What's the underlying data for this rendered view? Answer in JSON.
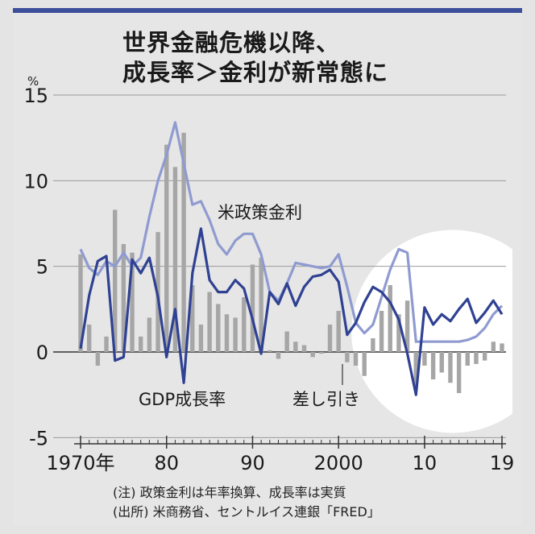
{
  "title_line1": "世界金融危機以降、",
  "title_line2": "成長率＞金利が新常態に",
  "unit": "%",
  "note1": "(注) 政策金利は年率換算、成長率は実質",
  "note2": "(出所) 米商務省、セントルイス連銀「FRED」",
  "chart_data": {
    "type": "line",
    "x": [
      1970,
      1971,
      1972,
      1973,
      1974,
      1975,
      1976,
      1977,
      1978,
      1979,
      1980,
      1981,
      1982,
      1983,
      1984,
      1985,
      1986,
      1987,
      1988,
      1989,
      1990,
      1991,
      1992,
      1993,
      1994,
      1995,
      1996,
      1997,
      1998,
      1999,
      2000,
      2001,
      2002,
      2003,
      2004,
      2005,
      2006,
      2007,
      2008,
      2009,
      2010,
      2011,
      2012,
      2013,
      2014,
      2015,
      2016,
      2017,
      2018,
      2019
    ],
    "ylim": [
      -5,
      15
    ],
    "yticks": [
      "15",
      "10",
      "5",
      "0",
      "-5"
    ],
    "yticks_values": [
      15,
      10,
      5,
      0,
      -5
    ],
    "xticks": [
      "1970年",
      "80",
      "90",
      "2000",
      "10",
      "19"
    ],
    "xticks_values": [
      1970,
      1980,
      1990,
      2000,
      2010,
      2019
    ],
    "grid": true,
    "colors": {
      "policy_rate": "#8f9bd0",
      "gdp_growth": "#2f4192",
      "difference": "#a6a6a6",
      "highlight": "#ffffff"
    },
    "series": [
      {
        "name": "米政策金利",
        "type": "line",
        "values": [
          6.0,
          4.9,
          4.5,
          5.3,
          5.0,
          5.8,
          5.0,
          5.5,
          7.9,
          10.0,
          11.5,
          13.4,
          11.0,
          8.6,
          8.8,
          7.7,
          6.3,
          5.7,
          6.5,
          6.9,
          6.9,
          5.7,
          3.5,
          3.0,
          4.0,
          5.2,
          5.1,
          5.0,
          4.9,
          5.0,
          5.7,
          3.8,
          1.7,
          1.1,
          1.6,
          3.2,
          4.8,
          6.0,
          5.8,
          0.6,
          0.6,
          0.6,
          0.6,
          0.6,
          0.6,
          0.7,
          0.9,
          1.4,
          2.2,
          2.7
        ]
      },
      {
        "name": "GDP成長率",
        "type": "line",
        "values": [
          0.2,
          3.3,
          5.3,
          5.6,
          -0.5,
          -0.3,
          5.4,
          4.6,
          5.5,
          3.2,
          -0.3,
          2.5,
          -1.8,
          4.6,
          7.2,
          4.2,
          3.5,
          3.5,
          4.2,
          3.7,
          1.9,
          -0.1,
          3.5,
          2.8,
          4.0,
          2.7,
          3.8,
          4.4,
          4.5,
          4.8,
          4.1,
          1.0,
          1.7,
          2.9,
          3.8,
          3.5,
          2.9,
          1.9,
          -0.1,
          -2.5,
          2.6,
          1.6,
          2.2,
          1.8,
          2.5,
          3.1,
          1.7,
          2.3,
          3.0,
          2.2
        ]
      },
      {
        "name": "差し引き",
        "type": "bar",
        "values": [
          5.7,
          1.6,
          -0.8,
          0.9,
          8.3,
          6.3,
          5.8,
          0.9,
          2.0,
          7.0,
          12.1,
          10.8,
          12.8,
          3.9,
          1.6,
          3.5,
          2.8,
          2.2,
          2.0,
          3.2,
          5.1,
          5.5,
          0.1,
          -0.4,
          1.2,
          0.6,
          0.4,
          -0.3,
          -0.1,
          1.6,
          2.4,
          -0.6,
          -0.8,
          -1.4,
          0.8,
          2.4,
          3.9,
          2.2,
          3.0,
          -2.0,
          -0.8,
          -1.6,
          -1.2,
          -1.8,
          -2.4,
          -0.8,
          -0.7,
          -0.5,
          0.6,
          0.5
        ]
      }
    ],
    "annotations": [
      "米政策金利",
      "GDP成長率",
      "差し引き"
    ]
  }
}
